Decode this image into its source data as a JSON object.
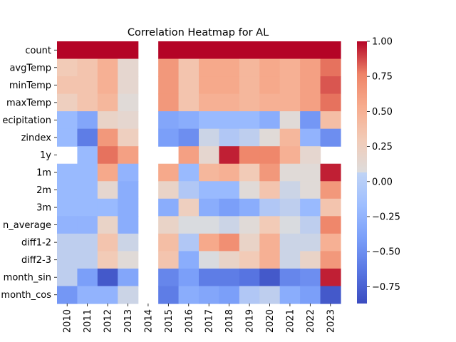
{
  "chart_data": {
    "type": "heatmap",
    "title": "Correlation Heatmap for AL",
    "xlabel": "",
    "ylabel": "",
    "columns": [
      "2010",
      "2011",
      "2012",
      "2013",
      "2014",
      "2015",
      "2016",
      "2017",
      "2018",
      "2019",
      "2020",
      "2021",
      "2022",
      "2023"
    ],
    "rows": [
      "count",
      "avgTemp",
      "minTemp",
      "maxTemp",
      "precipitation",
      "zindex",
      "1y",
      "1m",
      "2m",
      "3m",
      "mean_average",
      "diff1-2",
      "diff2-3",
      "month_sin",
      "month_cos"
    ],
    "row_labels_visible": [
      "count",
      "avgTemp",
      "minTemp",
      "maxTemp",
      "ecipitation",
      "zindex",
      "1y",
      "1m",
      "2m",
      "3m",
      "n_average",
      "diff1-2",
      "diff2-3",
      "month_sin",
      "month_cos"
    ],
    "values": [
      [
        1.0,
        1.0,
        1.0,
        1.0,
        null,
        1.0,
        1.0,
        1.0,
        1.0,
        1.0,
        1.0,
        1.0,
        1.0,
        1.0
      ],
      [
        0.3,
        0.35,
        0.5,
        0.15,
        null,
        0.65,
        0.35,
        0.55,
        0.55,
        0.45,
        0.55,
        0.5,
        0.6,
        0.8
      ],
      [
        0.35,
        0.35,
        0.5,
        0.15,
        null,
        0.65,
        0.35,
        0.55,
        0.55,
        0.45,
        0.55,
        0.5,
        0.6,
        0.85
      ],
      [
        0.25,
        0.35,
        0.45,
        0.1,
        null,
        0.65,
        0.35,
        0.5,
        0.5,
        0.45,
        0.5,
        0.5,
        0.6,
        0.8
      ],
      [
        -0.2,
        -0.35,
        0.2,
        0.15,
        null,
        -0.35,
        -0.3,
        -0.2,
        -0.2,
        -0.2,
        -0.3,
        0.1,
        -0.45,
        0.4
      ],
      [
        -0.2,
        -0.6,
        0.65,
        0.25,
        null,
        -0.4,
        -0.5,
        0.0,
        -0.1,
        -0.05,
        0.1,
        0.45,
        -0.25,
        -0.5
      ],
      [
        null,
        -0.2,
        0.8,
        0.6,
        null,
        null,
        0.6,
        0.15,
        0.95,
        0.75,
        0.75,
        0.5,
        0.15,
        null
      ],
      [
        -0.2,
        -0.2,
        0.55,
        -0.25,
        null,
        0.55,
        -0.2,
        0.45,
        0.5,
        0.3,
        0.65,
        0.1,
        0.1,
        0.95
      ],
      [
        -0.2,
        -0.2,
        0.15,
        -0.3,
        null,
        0.2,
        -0.1,
        -0.2,
        -0.2,
        0.1,
        0.35,
        0.0,
        0.1,
        0.65
      ],
      [
        -0.2,
        -0.2,
        -0.2,
        -0.3,
        null,
        -0.3,
        0.25,
        -0.3,
        -0.4,
        -0.3,
        -0.1,
        -0.05,
        -0.2,
        0.35
      ],
      [
        -0.25,
        -0.25,
        0.2,
        -0.3,
        null,
        0.2,
        0.05,
        0.05,
        0.0,
        0.1,
        0.3,
        0.05,
        -0.05,
        0.75
      ],
      [
        -0.05,
        -0.05,
        0.35,
        0.0,
        null,
        0.4,
        -0.1,
        0.55,
        0.7,
        0.2,
        0.5,
        0.0,
        0.0,
        0.5
      ],
      [
        -0.05,
        -0.05,
        0.3,
        0.1,
        null,
        0.35,
        -0.3,
        0.05,
        0.2,
        0.3,
        0.5,
        0.0,
        0.2,
        0.65
      ],
      [
        -0.05,
        -0.4,
        -0.8,
        -0.35,
        null,
        -0.55,
        -0.4,
        -0.6,
        -0.6,
        -0.65,
        -0.8,
        -0.55,
        -0.5,
        0.95
      ],
      [
        -0.45,
        -0.25,
        -0.25,
        0.0,
        null,
        -0.6,
        -0.3,
        -0.35,
        -0.4,
        -0.1,
        -0.05,
        -0.3,
        -0.4,
        -0.8
      ]
    ],
    "colormap": "coolwarm",
    "vmin": -0.87,
    "vmax": 1.0,
    "colorbar_ticks": [
      1.0,
      0.75,
      0.5,
      0.25,
      0.0,
      -0.25,
      -0.5,
      -0.75
    ],
    "colorbar_tick_labels": [
      "1.00",
      "0.75",
      "0.50",
      "0.25",
      "0.00",
      "−0.25",
      "−0.50",
      "−0.75"
    ],
    "grid": false,
    "legend": "colorbar-right"
  }
}
